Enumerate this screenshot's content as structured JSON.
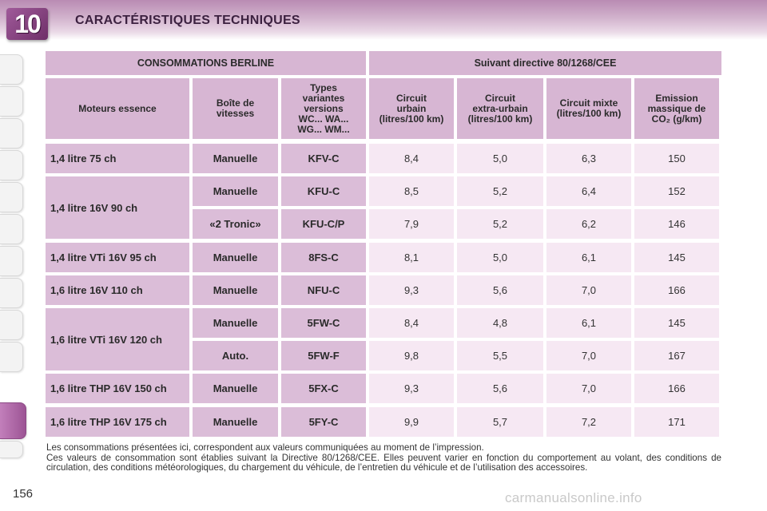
{
  "header": {
    "chapter_number": "10",
    "title": "CARACTÉRISTIQUES TECHNIQUES"
  },
  "table": {
    "group_headers": [
      "CONSOMMATIONS BERLINE",
      "Suivant directive 80/1268/CEE"
    ],
    "column_headers": [
      "Moteurs essence",
      "Boîte de\nvitesses",
      "Types\nvariantes\nversions\nWC... WA...\nWG... WM...",
      "Circuit\nurbain\n(litres/100 km)",
      "Circuit\nextra-urbain\n(litres/100 km)",
      "Circuit mixte\n(litres/100 km)",
      "Emission\nmassique de\nCO₂ (g/km)"
    ],
    "engines": [
      "1,4 litre 75 ch",
      "1,4 litre 16V 90 ch",
      "1,4 litre VTi 16V 95 ch",
      "1,6 litre 16V 110 ch",
      "1,6 litre VTi 16V 120 ch",
      "1,6 litre THP 16V 150 ch",
      "1,6 litre THP 16V 175 ch"
    ],
    "rows": [
      [
        "Manuelle",
        "KFV-C",
        "8,4",
        "5,0",
        "6,3",
        "150"
      ],
      [
        "Manuelle",
        "KFU-C",
        "8,5",
        "5,2",
        "6,4",
        "152"
      ],
      [
        "«2 Tronic»",
        "KFU-C/P",
        "7,9",
        "5,2",
        "6,2",
        "146"
      ],
      [
        "Manuelle",
        "8FS-C",
        "8,1",
        "5,0",
        "6,1",
        "145"
      ],
      [
        "Manuelle",
        "NFU-C",
        "9,3",
        "5,6",
        "7,0",
        "166"
      ],
      [
        "Manuelle",
        "5FW-C",
        "8,4",
        "4,8",
        "6,1",
        "145"
      ],
      [
        "Auto.",
        "5FW-F",
        "9,8",
        "5,5",
        "7,0",
        "167"
      ],
      [
        "Manuelle",
        "5FX-C",
        "9,3",
        "5,6",
        "7,0",
        "166"
      ],
      [
        "Manuelle",
        "5FY-C",
        "9,9",
        "5,7",
        "7,2",
        "171"
      ]
    ]
  },
  "notes": [
    "Les consommations présentées ici, correspondent aux valeurs communiquées au moment de l’impression.",
    "Ces valeurs de consommation sont établies suivant la Directive 80/1268/CEE. Elles peuvent varier en fonction du comportement au volant, des conditions de circulation, des conditions météorologiques, du chargement du véhicule, de l’entretien du véhicule et de l’utilisation des accessoires."
  ],
  "page_number": "156",
  "watermark": "carmanualsonline.info"
}
